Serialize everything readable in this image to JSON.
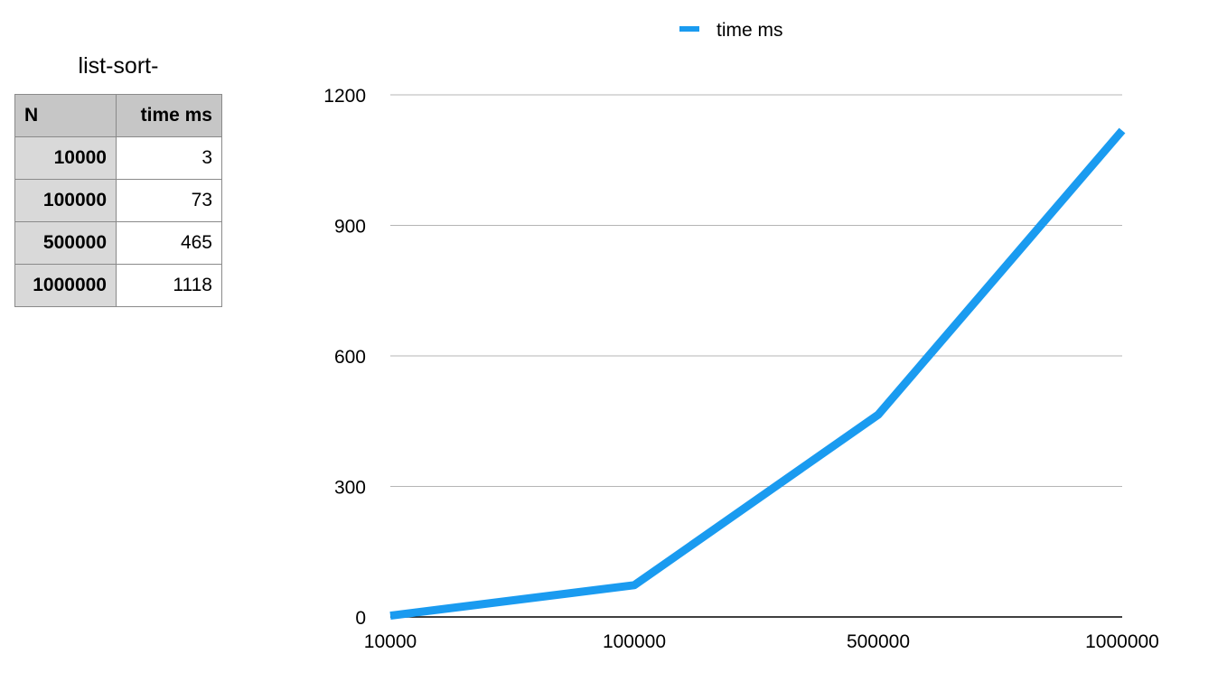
{
  "table": {
    "title": "list-sort-",
    "headers": [
      "N",
      "time ms"
    ],
    "rows": [
      {
        "n": "10000",
        "time": "3"
      },
      {
        "n": "100000",
        "time": "73"
      },
      {
        "n": "500000",
        "time": "465"
      },
      {
        "n": "1000000",
        "time": "1118"
      }
    ]
  },
  "chart_data": {
    "type": "line",
    "title": "",
    "xlabel": "",
    "ylabel": "",
    "categories": [
      "10000",
      "100000",
      "500000",
      "1000000"
    ],
    "series": [
      {
        "name": "time ms",
        "values": [
          3,
          73,
          465,
          1118
        ],
        "color": "#1a9bf0"
      }
    ],
    "ylim": [
      0,
      1200
    ],
    "yticks": [
      0,
      300,
      600,
      900,
      1200
    ],
    "grid": true,
    "legend": "top-center"
  }
}
